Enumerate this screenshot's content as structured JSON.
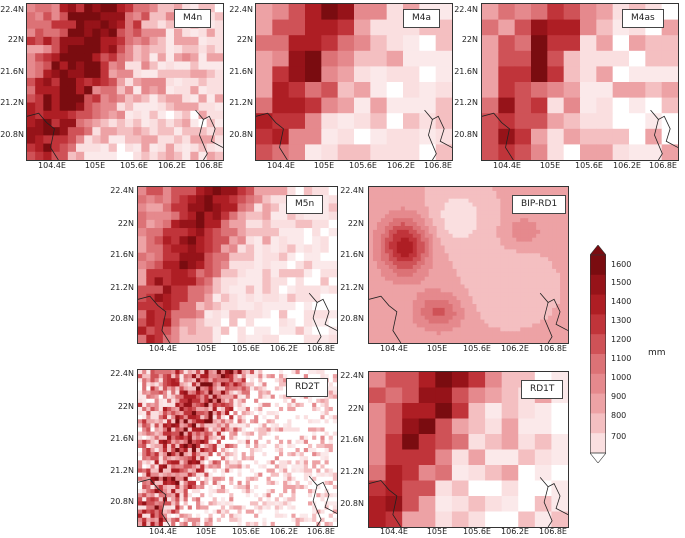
{
  "panels": [
    {
      "label": "M4n"
    },
    {
      "label": "M4a"
    },
    {
      "label": "M4as"
    },
    {
      "label": "M5n"
    },
    {
      "label": "BIP-RD1"
    },
    {
      "label": "RD2T"
    },
    {
      "label": "RD1T"
    }
  ],
  "axes": {
    "lat_ticks": [
      "22.4N",
      "22N",
      "21.6N",
      "21.2N",
      "20.8N"
    ],
    "lon_ticks": [
      "104.4E",
      "105E",
      "105.6E",
      "106.2E",
      "106.8E"
    ]
  },
  "colorbar": {
    "unit": "mm",
    "ticks": [
      "1600",
      "1500",
      "1400",
      "1300",
      "1200",
      "1100",
      "1000",
      "900",
      "800",
      "700"
    ],
    "colors": [
      "#7a0c10",
      "#961319",
      "#ae1e24",
      "#c0343a",
      "#cf5257",
      "#dc7276",
      "#e5898d",
      "#eda2a5",
      "#f4bfc1",
      "#fadfe0"
    ]
  }
}
